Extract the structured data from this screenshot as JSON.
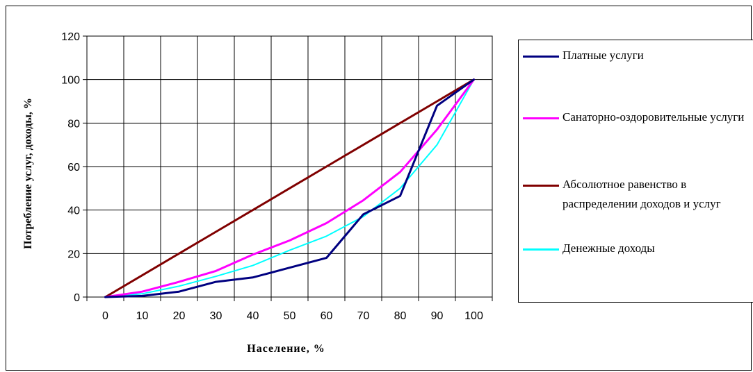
{
  "chart_data": {
    "type": "line",
    "x": [
      0,
      10,
      20,
      30,
      40,
      50,
      60,
      70,
      80,
      90,
      100
    ],
    "xlabel": "Население, %",
    "ylabel": "Потребление услуг, доходы, %",
    "ylim": [
      0,
      120
    ],
    "yticks": [
      0,
      20,
      40,
      60,
      80,
      100,
      120
    ],
    "xticks": [
      "0",
      "10",
      "20",
      "30",
      "40",
      "50",
      "60",
      "70",
      "80",
      "90",
      "100"
    ],
    "grid": true,
    "legend_position": "right",
    "series": [
      {
        "name": "Платные услуги",
        "color": "#000080",
        "values": [
          0,
          0.5,
          2.5,
          7,
          9,
          13.5,
          18,
          38,
          46.5,
          88,
          100
        ]
      },
      {
        "name": "Санаторно-оздоровительные услуги",
        "color": "#ff00ff",
        "values": [
          0,
          2.5,
          7,
          12,
          19.5,
          26,
          34,
          44.5,
          57.5,
          77,
          100
        ]
      },
      {
        "name": "Абсолютное равенство в распределении доходов и услуг",
        "color": "#800000",
        "values": [
          0,
          10,
          20,
          30,
          40,
          50,
          60,
          70,
          80,
          90,
          100
        ]
      },
      {
        "name": "Денежные доходы",
        "color": "#00ffff",
        "values": [
          0,
          1.5,
          5,
          9.5,
          14.5,
          21.5,
          28,
          37,
          50,
          70,
          100
        ]
      }
    ]
  }
}
